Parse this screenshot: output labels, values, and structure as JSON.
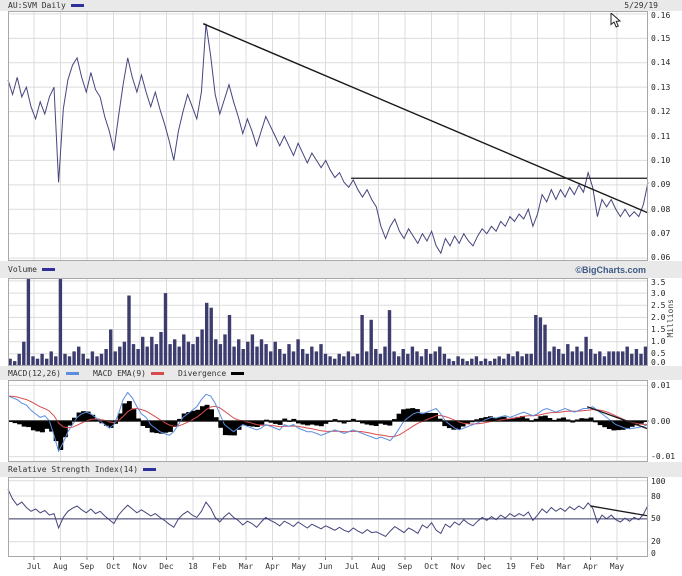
{
  "meta": {
    "date": "5/29/19",
    "credit": "©BigCharts.com"
  },
  "colors": {
    "price_line": "#45457d",
    "volume_bar": "#3c3c6e",
    "macd_line": "#5b8de0",
    "ema_line": "#d84b4b",
    "divergence": "#000000",
    "trendline": "#1a1a1a",
    "grid": "#dcdcdc",
    "band_background": "#e9e9e9",
    "legend_navy": "#30309a"
  },
  "x_axis": {
    "labels": [
      "Jul",
      "Aug",
      "Sep",
      "Oct",
      "Nov",
      "Dec",
      "18",
      "Feb",
      "Mar",
      "Apr",
      "May",
      "Jun",
      "Jul",
      "Aug",
      "Sep",
      "Oct",
      "Nov",
      "Dec",
      "19",
      "Feb",
      "Mar",
      "Apr",
      "May"
    ]
  },
  "chart_data": [
    {
      "type": "line",
      "name": "price",
      "title": "AU:SVM Daily",
      "color": "#45457d",
      "legend_color": "#30309a",
      "ylim": [
        0.0588,
        0.1612
      ],
      "ytick_values": [
        0.16,
        0.15,
        0.14,
        0.13,
        0.12,
        0.11,
        0.1,
        0.09,
        0.08,
        0.07,
        0.06
      ],
      "ytick_labels": [
        "0.16",
        "0.15",
        "0.14",
        "0.13",
        "0.12",
        "0.11",
        "0.10",
        "0.09",
        "0.08",
        "0.07",
        "0.06"
      ],
      "values": [
        0.133,
        0.127,
        0.134,
        0.126,
        0.13,
        0.122,
        0.117,
        0.124,
        0.119,
        0.126,
        0.13,
        0.091,
        0.121,
        0.133,
        0.139,
        0.142,
        0.134,
        0.128,
        0.136,
        0.129,
        0.126,
        0.118,
        0.112,
        0.104,
        0.118,
        0.131,
        0.142,
        0.134,
        0.128,
        0.135,
        0.128,
        0.122,
        0.128,
        0.121,
        0.115,
        0.108,
        0.1,
        0.112,
        0.12,
        0.127,
        0.122,
        0.117,
        0.128,
        0.156,
        0.143,
        0.127,
        0.119,
        0.125,
        0.131,
        0.124,
        0.118,
        0.111,
        0.117,
        0.112,
        0.106,
        0.112,
        0.118,
        0.114,
        0.11,
        0.106,
        0.11,
        0.106,
        0.102,
        0.107,
        0.103,
        0.099,
        0.103,
        0.1,
        0.097,
        0.1,
        0.096,
        0.093,
        0.095,
        0.091,
        0.089,
        0.092,
        0.088,
        0.085,
        0.088,
        0.084,
        0.081,
        0.073,
        0.068,
        0.073,
        0.076,
        0.071,
        0.068,
        0.072,
        0.069,
        0.066,
        0.07,
        0.067,
        0.071,
        0.065,
        0.062,
        0.068,
        0.065,
        0.069,
        0.066,
        0.07,
        0.067,
        0.065,
        0.069,
        0.072,
        0.07,
        0.073,
        0.071,
        0.075,
        0.073,
        0.077,
        0.075,
        0.078,
        0.076,
        0.08,
        0.073,
        0.078,
        0.086,
        0.083,
        0.088,
        0.084,
        0.088,
        0.085,
        0.089,
        0.086,
        0.09,
        0.087,
        0.095,
        0.089,
        0.077,
        0.084,
        0.081,
        0.084,
        0.08,
        0.077,
        0.08,
        0.077,
        0.079,
        0.077,
        0.082,
        0.091
      ],
      "overlays": [
        {
          "kind": "downtrend-line",
          "x1": 0.305,
          "v1": 0.156,
          "x2": 1.0,
          "v2": 0.0785,
          "color": "#1a1a1a",
          "width": 1.4
        },
        {
          "kind": "resistance-line",
          "x1": 0.536,
          "v1": 0.0927,
          "x2": 1.0,
          "v2": 0.0927,
          "color": "#1a1a1a",
          "width": 1.2
        }
      ]
    },
    {
      "type": "bar",
      "name": "volume",
      "title": "Volume",
      "color": "#3c3c6e",
      "legend_color": "#30309a",
      "ylabel": "Millions",
      "ylim": [
        0,
        3.62
      ],
      "ytick_values": [
        3.5,
        3.0,
        2.5,
        2.0,
        1.5,
        1.0,
        0.5,
        0.0
      ],
      "ytick_labels": [
        "3.5",
        "3.0",
        "2.5",
        "2.0",
        "1.5",
        "1.0",
        "0.5",
        "0.0"
      ],
      "values": [
        0.3,
        0.2,
        0.5,
        1.0,
        3.9,
        0.4,
        0.3,
        0.5,
        0.3,
        0.6,
        0.4,
        3.7,
        0.5,
        0.4,
        0.6,
        0.8,
        0.5,
        0.3,
        0.6,
        0.4,
        0.5,
        0.7,
        1.5,
        0.6,
        0.8,
        1.0,
        2.9,
        0.9,
        0.7,
        1.2,
        0.8,
        1.2,
        0.9,
        1.4,
        3.0,
        0.9,
        1.1,
        0.8,
        1.3,
        1.0,
        0.9,
        1.2,
        1.5,
        2.6,
        2.4,
        1.1,
        0.9,
        1.3,
        2.1,
        0.8,
        1.1,
        0.7,
        1.0,
        1.3,
        0.8,
        1.1,
        0.9,
        0.6,
        1.0,
        0.7,
        0.5,
        0.9,
        0.6,
        1.1,
        0.7,
        0.5,
        0.8,
        0.6,
        0.9,
        0.5,
        0.4,
        0.3,
        0.5,
        0.4,
        0.6,
        0.4,
        0.5,
        2.1,
        0.6,
        1.9,
        0.7,
        0.5,
        0.8,
        2.3,
        0.6,
        0.4,
        0.7,
        0.5,
        0.8,
        0.6,
        0.4,
        0.7,
        0.5,
        0.6,
        0.8,
        0.5,
        0.3,
        0.2,
        0.4,
        0.3,
        0.2,
        0.3,
        0.4,
        0.2,
        0.3,
        0.2,
        0.3,
        0.4,
        0.3,
        0.5,
        0.4,
        0.6,
        0.4,
        0.5,
        0.5,
        2.1,
        2.0,
        1.7,
        0.6,
        0.8,
        0.7,
        0.5,
        0.9,
        0.6,
        0.8,
        0.6,
        1.2,
        0.7,
        0.5,
        0.6,
        0.4,
        0.6,
        0.6,
        0.6,
        0.6,
        0.8,
        0.5,
        0.7,
        0.5,
        0.8
      ],
      "overlays": []
    },
    {
      "type": "line",
      "name": "macd",
      "title": "MACD",
      "ema_period": 9,
      "ylim": [
        -0.0115,
        0.0115
      ],
      "ytick_values": [
        0.01,
        0,
        -0.01
      ],
      "ytick_labels": [
        "0.01",
        "0.00",
        "-0.01"
      ],
      "series": [
        {
          "name": "MACD(12,26)",
          "color": "#5b8de0",
          "values": [
            0.007,
            0.0065,
            0.006,
            0.005,
            0.0045,
            0.003,
            0.002,
            0.001,
            0.0015,
            0.0,
            -0.004,
            -0.0085,
            -0.006,
            -0.003,
            -0.001,
            0.001,
            0.002,
            0.0025,
            0.002,
            0.001,
            0.0,
            -0.001,
            -0.002,
            -0.001,
            0.002,
            0.006,
            0.008,
            0.0065,
            0.004,
            0.002,
            0.001,
            -0.001,
            -0.002,
            -0.003,
            -0.0035,
            -0.004,
            -0.003,
            -0.001,
            0.001,
            0.002,
            0.003,
            0.004,
            0.006,
            0.0075,
            0.007,
            0.005,
            0.002,
            -0.001,
            -0.002,
            -0.003,
            -0.002,
            -0.001,
            -0.0015,
            -0.002,
            -0.0025,
            -0.002,
            -0.001,
            -0.0015,
            -0.002,
            -0.0025,
            -0.001,
            -0.0015,
            -0.001,
            -0.002,
            -0.0025,
            -0.003,
            -0.003,
            -0.0035,
            -0.004,
            -0.0035,
            -0.003,
            -0.0025,
            -0.003,
            -0.0035,
            -0.003,
            -0.0025,
            -0.003,
            -0.0035,
            -0.004,
            -0.0045,
            -0.005,
            -0.0045,
            -0.005,
            -0.0055,
            -0.004,
            -0.002,
            0.0,
            0.001,
            0.002,
            0.0025,
            0.002,
            0.0025,
            0.003,
            0.0035,
            0.002,
            0.0,
            -0.001,
            -0.002,
            -0.0025,
            -0.002,
            -0.0015,
            -0.001,
            -0.0005,
            0.0,
            0.0005,
            0.001,
            0.0008,
            0.0012,
            0.0015,
            0.001,
            0.0015,
            0.002,
            0.0025,
            0.002,
            0.0015,
            0.002,
            0.003,
            0.0035,
            0.003,
            0.0025,
            0.003,
            0.0035,
            0.003,
            0.0025,
            0.003,
            0.0035,
            0.0035,
            0.004,
            0.003,
            0.002,
            0.001,
            0.0,
            -0.001,
            -0.0015,
            -0.002,
            -0.0022,
            -0.002,
            -0.0018,
            -0.0015,
            -0.001
          ]
        },
        {
          "name": "MACD EMA(9)",
          "color": "#d84b4b",
          "derived": "EMA(9) of MACD"
        },
        {
          "name": "Divergence",
          "color": "#000000",
          "derived": "MACD minus EMA"
        }
      ],
      "overlays": [
        {
          "kind": "zero-line",
          "x1": 0,
          "v1": 0,
          "x2": 1,
          "v2": 0,
          "color": "#111111",
          "width": 1
        },
        {
          "kind": "downtrend-line",
          "x1": 0.905,
          "v1": 0.004,
          "x2": 1.0,
          "v2": -0.0022,
          "color": "#1a1a1a",
          "width": 1.3
        }
      ]
    },
    {
      "type": "line",
      "name": "rsi",
      "title": "Relative Strength Index(14)",
      "color": "#45457d",
      "legend_color": "#30309a",
      "ylim": [
        0,
        105
      ],
      "ytick_values": [
        100,
        80,
        50,
        20,
        0
      ],
      "ytick_labels": [
        "100",
        "80",
        "50",
        "20",
        "0"
      ],
      "values": [
        89,
        76,
        68,
        72,
        65,
        60,
        63,
        58,
        61,
        55,
        57,
        38,
        52,
        60,
        64,
        67,
        62,
        58,
        63,
        57,
        60,
        54,
        49,
        44,
        55,
        62,
        68,
        63,
        58,
        62,
        58,
        54,
        57,
        52,
        48,
        43,
        39,
        50,
        56,
        60,
        55,
        52,
        60,
        72,
        64,
        52,
        46,
        53,
        58,
        52,
        48,
        42,
        47,
        44,
        39,
        46,
        52,
        48,
        45,
        41,
        47,
        44,
        40,
        46,
        42,
        38,
        43,
        40,
        37,
        41,
        38,
        35,
        39,
        35,
        33,
        38,
        34,
        31,
        36,
        32,
        33,
        30,
        27,
        34,
        40,
        36,
        32,
        38,
        35,
        31,
        42,
        38,
        45,
        35,
        31,
        43,
        39,
        46,
        42,
        49,
        44,
        41,
        47,
        52,
        48,
        53,
        49,
        55,
        51,
        57,
        53,
        57,
        54,
        59,
        48,
        55,
        63,
        58,
        65,
        60,
        64,
        60,
        66,
        62,
        67,
        63,
        71,
        64,
        45,
        55,
        50,
        55,
        49,
        46,
        51,
        47,
        52,
        49,
        56,
        68
      ],
      "overlays": [
        {
          "kind": "mid-line-50",
          "x1": 0,
          "v1": 50,
          "x2": 1,
          "v2": 50,
          "color": "#3a3a6b",
          "width": 1
        },
        {
          "kind": "downtrend-line",
          "x1": 0.91,
          "v1": 67,
          "x2": 1.0,
          "v2": 54,
          "color": "#1a1a1a",
          "width": 1.3
        }
      ]
    }
  ]
}
